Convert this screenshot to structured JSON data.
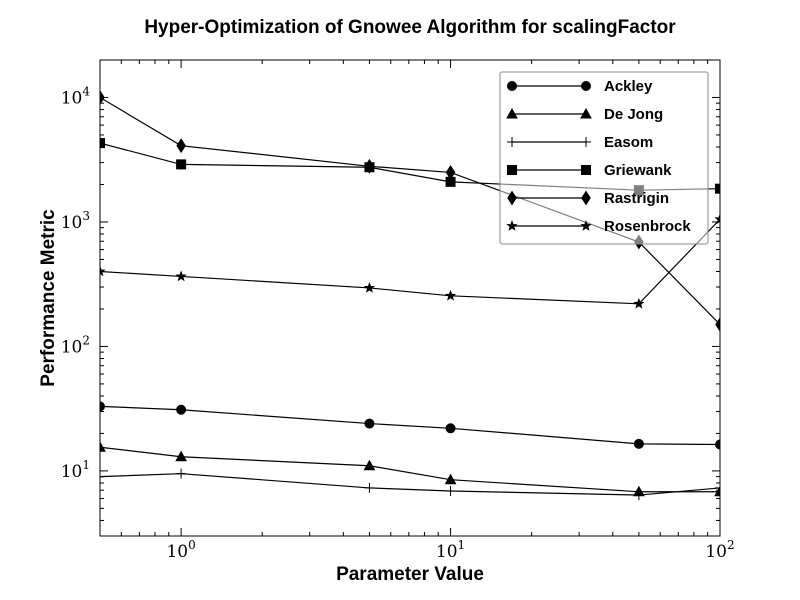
{
  "chart_data": {
    "type": "line",
    "title": "Hyper-Optimization of Gnowee Algorithm for scalingFactor",
    "xlabel": "Parameter Value",
    "ylabel": "Performance Metric",
    "x_scale": "log",
    "y_scale": "log",
    "xlim": [
      0.5,
      100
    ],
    "ylim": [
      3,
      20000
    ],
    "x_ticks": [
      {
        "value": 1,
        "base": "10",
        "exp": "0"
      },
      {
        "value": 10,
        "base": "10",
        "exp": "1"
      },
      {
        "value": 100,
        "base": "10",
        "exp": "2"
      }
    ],
    "y_ticks": [
      {
        "value": 10,
        "base": "10",
        "exp": "1"
      },
      {
        "value": 100,
        "base": "10",
        "exp": "2"
      },
      {
        "value": 1000,
        "base": "10",
        "exp": "3"
      },
      {
        "value": 10000,
        "base": "10",
        "exp": "4"
      }
    ],
    "grid": false,
    "legend_position": "top-right",
    "x": [
      0.5,
      1,
      5,
      10,
      50,
      100
    ],
    "series": [
      {
        "name": "Ackley",
        "marker": "circle",
        "values": [
          33,
          31,
          24,
          22,
          16.5,
          16.3
        ]
      },
      {
        "name": "De Jong",
        "marker": "triangle",
        "values": [
          15.5,
          13,
          11,
          8.5,
          6.8,
          6.8
        ]
      },
      {
        "name": "Easom",
        "marker": "plus",
        "values": [
          9,
          9.5,
          7.3,
          6.9,
          6.4,
          7.3
        ]
      },
      {
        "name": "Griewank",
        "marker": "square",
        "values": [
          4300,
          2900,
          2750,
          2100,
          1800,
          1850
        ]
      },
      {
        "name": "Rastrigin",
        "marker": "diamond",
        "values": [
          10000,
          4100,
          2800,
          2500,
          690,
          150
        ]
      },
      {
        "name": "Rosenbrock",
        "marker": "star",
        "values": [
          400,
          365,
          295,
          255,
          220,
          1050
        ]
      }
    ]
  }
}
